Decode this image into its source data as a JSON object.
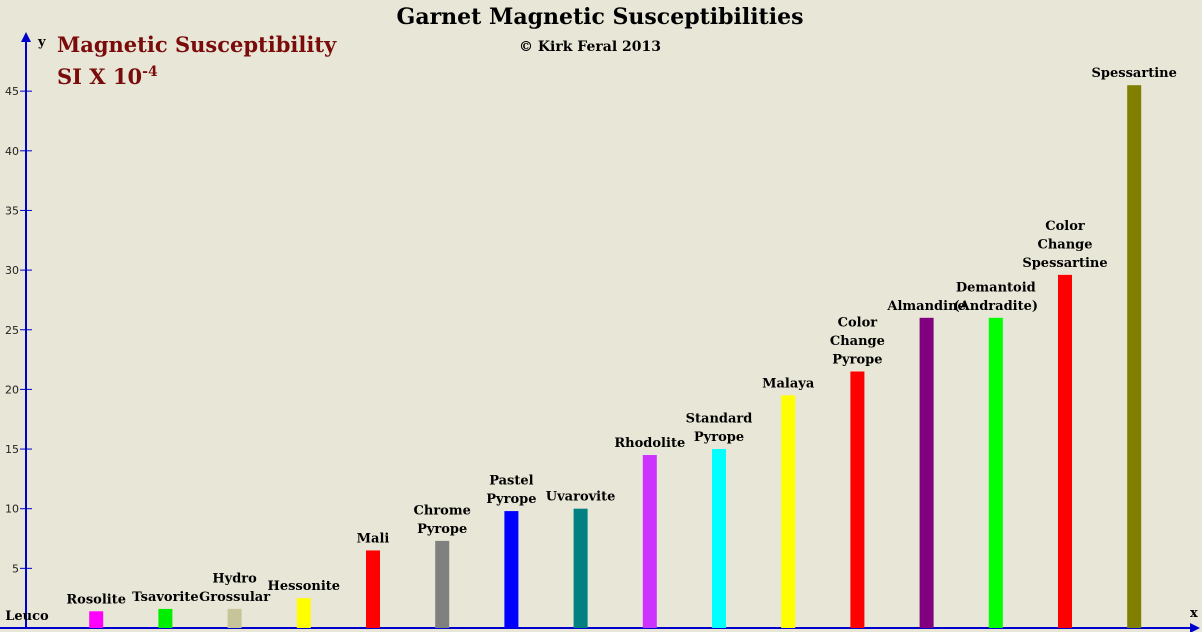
{
  "chart_data": {
    "type": "bar",
    "title": "Garnet Magnetic Susceptibilities",
    "subtitle": "© Kirk Feral 2013",
    "ylabel_line1": "Magnetic Susceptibility",
    "ylabel_line2_base": "SI X 10",
    "ylabel_line2_exp": "-4",
    "x_axis_letter": "x",
    "y_axis_letter": "y",
    "ylim": [
      0,
      48
    ],
    "yticks": [
      "5",
      "10",
      "15",
      "20",
      "25",
      "30",
      "35",
      "40",
      "45"
    ],
    "grid": false,
    "legend": "none",
    "bars": [
      {
        "label": [
          "Leuco"
        ],
        "value": 0,
        "color": "#e8e6d6"
      },
      {
        "label": [
          "Rosolite"
        ],
        "value": 1.4,
        "color": "#ff00ff"
      },
      {
        "label": [
          "Tsavorite"
        ],
        "value": 1.6,
        "color": "#00ee00"
      },
      {
        "label": [
          "Hydro",
          "Grossular"
        ],
        "value": 1.6,
        "color": "#c8c49a"
      },
      {
        "label": [
          "Hessonite"
        ],
        "value": 2.5,
        "color": "#ffff00"
      },
      {
        "label": [
          "Mali"
        ],
        "value": 6.5,
        "color": "#ff0000"
      },
      {
        "label": [
          "Chrome",
          "Pyrope"
        ],
        "value": 7.3,
        "color": "#808080"
      },
      {
        "label": [
          "Pastel",
          "Pyrope"
        ],
        "value": 9.8,
        "color": "#0000ff"
      },
      {
        "label": [
          "Uvarovite"
        ],
        "value": 10,
        "color": "#008080"
      },
      {
        "label": [
          "Rhodolite"
        ],
        "value": 14.5,
        "color": "#cc33ff"
      },
      {
        "label": [
          "Standard",
          "Pyrope"
        ],
        "value": 15,
        "color": "#00ffff"
      },
      {
        "label": [
          "Malaya"
        ],
        "value": 19.5,
        "color": "#ffff00"
      },
      {
        "label": [
          "Color",
          "Change",
          "Pyrope"
        ],
        "value": 21.5,
        "color": "#ff0000"
      },
      {
        "label": [
          "Almandine"
        ],
        "value": 26,
        "color": "#800080"
      },
      {
        "label": [
          "Demantoid",
          "(Andradite)"
        ],
        "value": 26,
        "color": "#00ff00"
      },
      {
        "label": [
          "Color",
          "Change",
          "Spessartine"
        ],
        "value": 29.6,
        "color": "#ff0000"
      },
      {
        "label": [
          "Spessartine"
        ],
        "value": 45.5,
        "color": "#808000"
      }
    ]
  }
}
